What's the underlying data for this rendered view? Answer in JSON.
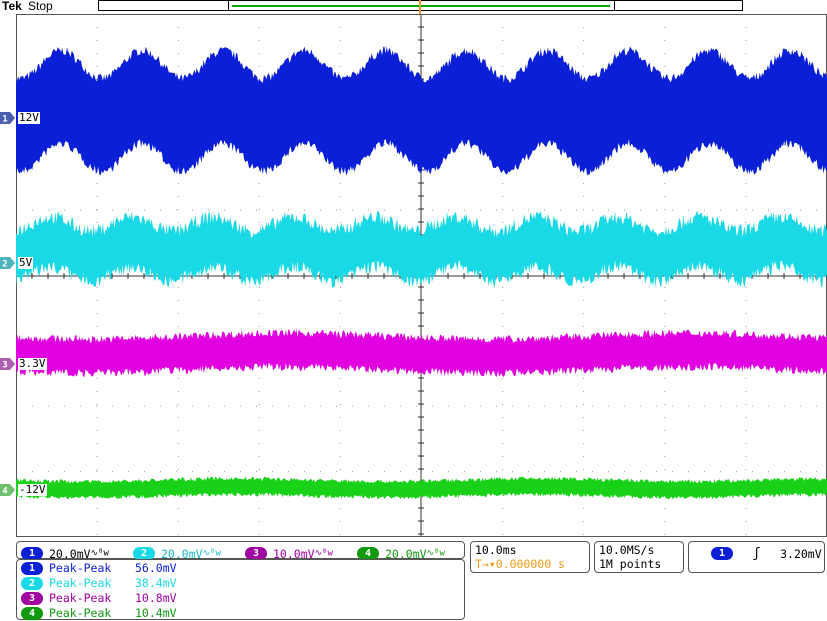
{
  "header": {
    "brand": "Tek",
    "status": "Stop",
    "trigger_marker": "T"
  },
  "channels": [
    {
      "id": "1",
      "label": "12V",
      "color": "#0a1fd6",
      "scale": "20.0mV",
      "coupling": "∿ᴮw"
    },
    {
      "id": "2",
      "label": "5V",
      "color": "#19d9e6",
      "scale": "20.0mV",
      "coupling": "∿ᴮw"
    },
    {
      "id": "3",
      "label": "3.3V",
      "color": "#e000e0",
      "scale": "10.0mV",
      "coupling": "∿ᴮw"
    },
    {
      "id": "4",
      "label": "-12V",
      "color": "#19d119",
      "scale": "20.0mV",
      "coupling": "∿ᴮw"
    }
  ],
  "measurements": [
    {
      "channel": "1",
      "name": "Peak-Peak",
      "value": "56.0mV",
      "color": "#0a1fd6"
    },
    {
      "channel": "2",
      "name": "Peak-Peak",
      "value": "38.4mV",
      "color": "#19d9e6"
    },
    {
      "channel": "3",
      "name": "Peak-Peak",
      "value": "10.8mV",
      "color": "#a000a0"
    },
    {
      "channel": "4",
      "name": "Peak-Peak",
      "value": "10.4mV",
      "color": "#109a10"
    }
  ],
  "timebase": {
    "scale": "10.0ms",
    "trigger_position": "T→▾0.000000 s"
  },
  "acquisition": {
    "sample_rate": "10.0MS/s",
    "record_length": "1M points"
  },
  "trigger": {
    "source": "1",
    "slope": "ʃ",
    "level": "3.20mV"
  },
  "colors": {
    "trigger_orange": "#f29a1a",
    "record_green": "#00aa00"
  }
}
